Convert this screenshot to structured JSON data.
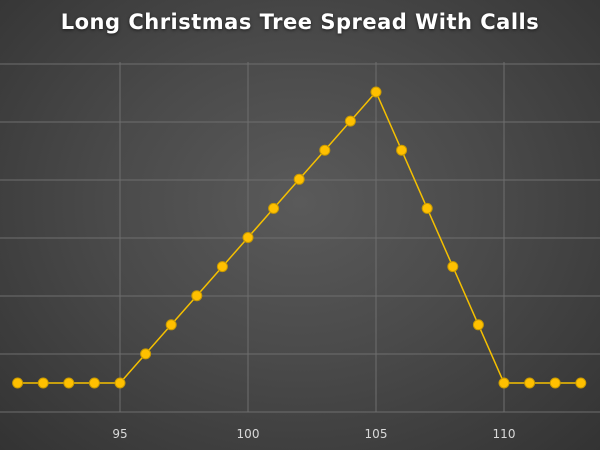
{
  "chart_data": {
    "type": "line",
    "title": "Long Christmas Tree Spread With Calls",
    "xlabel": "",
    "ylabel": "",
    "xlim": [
      91,
      113.5
    ],
    "ylim": [
      -0.5,
      5.1
    ],
    "xticks": [
      95,
      100,
      105,
      110
    ],
    "ygrid": [
      0,
      1,
      2,
      3,
      4,
      5
    ],
    "grid": true,
    "legend": "none",
    "colors": {
      "line": "#f5c000",
      "marker": "#ffc000",
      "marker_edge": "#c99a00",
      "grid": "#6e6e6e"
    },
    "series": [
      {
        "x": [
          91,
          92,
          93,
          94,
          95,
          96,
          97,
          98,
          99,
          100,
          101,
          102,
          103,
          104,
          105,
          106,
          107,
          108,
          109,
          110,
          111,
          112,
          113
        ],
        "y": [
          0,
          0,
          0,
          0,
          0,
          0.5,
          1,
          1.5,
          2,
          2.5,
          3,
          3.5,
          4,
          4.5,
          5,
          4,
          3,
          2,
          1,
          0,
          0,
          0,
          0
        ]
      }
    ]
  }
}
